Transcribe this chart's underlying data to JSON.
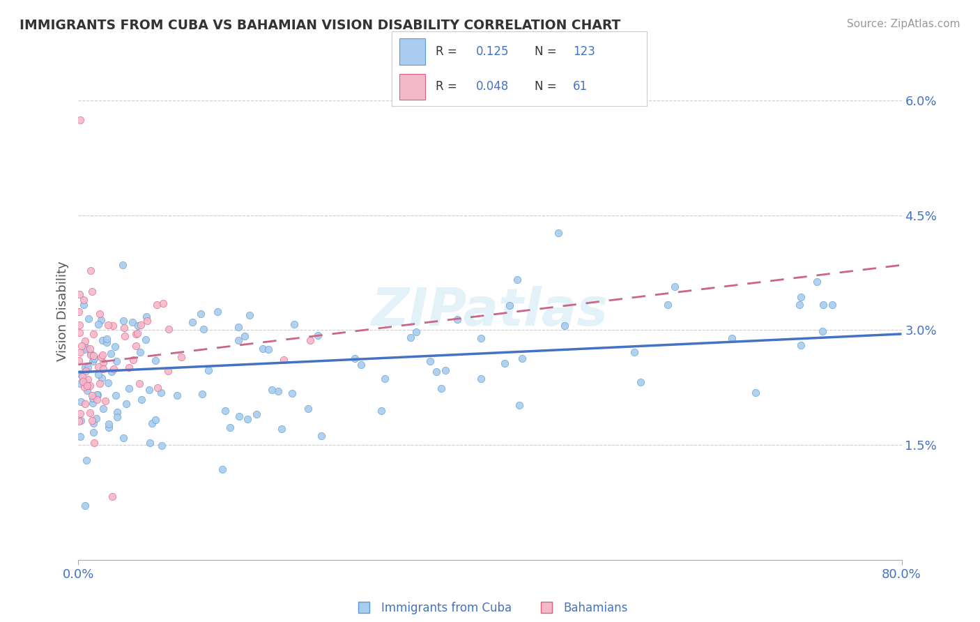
{
  "title": "IMMIGRANTS FROM CUBA VS BAHAMIAN VISION DISABILITY CORRELATION CHART",
  "source": "Source: ZipAtlas.com",
  "ylabel": "Vision Disability",
  "xlim": [
    0.0,
    80.0
  ],
  "ylim": [
    0.0,
    6.5
  ],
  "yticks": [
    0.0,
    1.5,
    3.0,
    4.5,
    6.0
  ],
  "ytick_labels": [
    "",
    "1.5%",
    "3.0%",
    "4.5%",
    "6.0%"
  ],
  "xtick_labels": [
    "0.0%",
    "80.0%"
  ],
  "blue_color": "#aaccee",
  "blue_color_dark": "#5b9bd5",
  "blue_line_color": "#4472c4",
  "pink_color": "#f4b8cb",
  "pink_color_dark": "#e06080",
  "pink_line_color": "#cc6688",
  "blue_r": "0.125",
  "blue_n": "123",
  "pink_r": "0.048",
  "pink_n": "61",
  "legend_label_blue": "Immigrants from Cuba",
  "legend_label_pink": "Bahamians",
  "watermark": "ZIPatlas",
  "background_color": "#ffffff",
  "grid_color": "#cccccc",
  "title_color": "#333333",
  "axis_label_color": "#4472c4",
  "blue_line_start_y": 2.45,
  "blue_line_end_y": 2.95,
  "pink_line_start_y": 2.55,
  "pink_line_end_y": 3.85
}
